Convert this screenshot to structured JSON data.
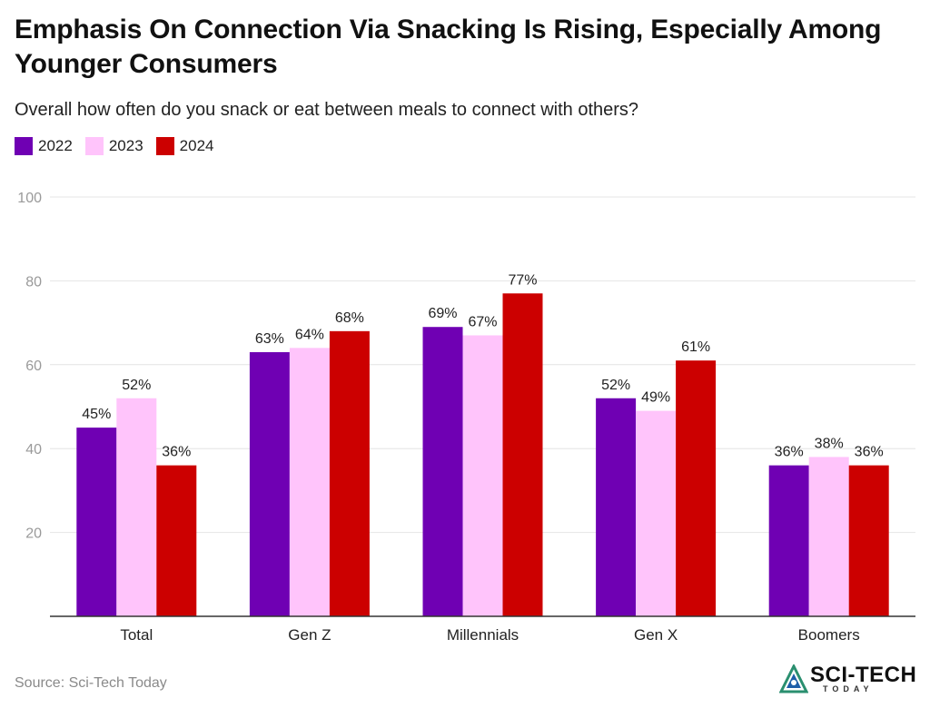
{
  "title": "Emphasis On Connection Via Snacking Is Rising, Especially Among Younger Consumers",
  "subtitle": "Overall how often do you snack or eat between meals to connect with others?",
  "source": "Source: Sci-Tech Today",
  "brand": {
    "name": "SCI-TECH",
    "tagline": "TODAY",
    "icon": "atom-triangle-logo"
  },
  "colors": {
    "2022": "#6f00b3",
    "2023": "#ffc4fb",
    "2024": "#cc0000",
    "grid": "#e4e4e4",
    "axis": "#333333",
    "tick": "#9a9a9a"
  },
  "chart_data": {
    "type": "bar",
    "title": "Emphasis On Connection Via Snacking Is Rising, Especially Among Younger Consumers",
    "subtitle": "Overall how often do you snack or eat between meals to connect with others?",
    "categories": [
      "Total",
      "Gen Z",
      "Millennials",
      "Gen X",
      "Boomers"
    ],
    "series": [
      {
        "name": "2022",
        "values": [
          45,
          63,
          69,
          52,
          36
        ],
        "labels": [
          "45%",
          "63%",
          "69%",
          "52%",
          "36%"
        ]
      },
      {
        "name": "2023",
        "values": [
          52,
          64,
          67,
          49,
          38
        ],
        "labels": [
          "52%",
          "64%",
          "67%",
          "49%",
          "38%"
        ]
      },
      {
        "name": "2024",
        "values": [
          36,
          68,
          77,
          61,
          36
        ],
        "labels": [
          "36%",
          "68%",
          "77%",
          "61%",
          "36%"
        ]
      }
    ],
    "xlabel": "",
    "ylabel": "",
    "ylim": [
      0,
      100
    ],
    "yticks": [
      "20",
      "40",
      "60",
      "80",
      "100"
    ],
    "grid": true,
    "legend": "top-left"
  }
}
